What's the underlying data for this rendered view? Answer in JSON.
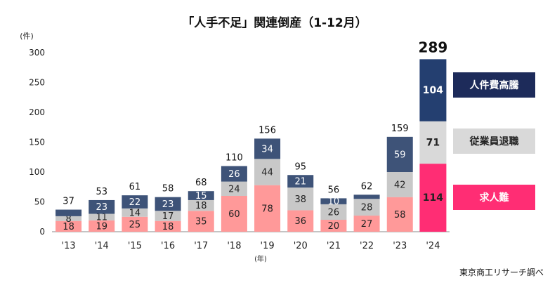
{
  "chart_data": {
    "type": "bar",
    "stacked": true,
    "title": "「人手不足」関連倒産（1-12月）",
    "ylabel": "(件)",
    "xlabel": "(年)",
    "source": "東京商工リサーチ調べ",
    "ylim": [
      0,
      300
    ],
    "yticks": [
      0,
      50,
      100,
      150,
      200,
      250,
      300
    ],
    "categories": [
      "'13",
      "'14",
      "'15",
      "'16",
      "'17",
      "'18",
      "'19",
      "'20",
      "'21",
      "'22",
      "'23",
      "'24"
    ],
    "totals": [
      37,
      53,
      61,
      58,
      68,
      110,
      156,
      95,
      56,
      62,
      159,
      289
    ],
    "series": [
      {
        "name": "求人難",
        "values": [
          18,
          19,
          25,
          18,
          35,
          60,
          78,
          36,
          20,
          27,
          58,
          114
        ]
      },
      {
        "name": "従業員退職",
        "values": [
          8,
          11,
          14,
          17,
          18,
          24,
          44,
          38,
          26,
          28,
          42,
          71
        ]
      },
      {
        "name": "人件費高騰",
        "values": [
          11,
          23,
          22,
          23,
          15,
          26,
          34,
          21,
          10,
          7,
          59,
          104
        ]
      }
    ],
    "data_labels": {
      "求人難": [
        "18",
        "19",
        "25",
        "18",
        "35",
        "60",
        "78",
        "36",
        "20",
        "27",
        "58",
        "114"
      ],
      "従業員退職": [
        "8",
        "11",
        "14",
        "17",
        "18",
        "24",
        "44",
        "38",
        "26",
        "28",
        "42",
        "71"
      ],
      "人件費高騰": [
        "",
        "23",
        "22",
        "23",
        "15",
        "26",
        "34",
        "21",
        "10",
        "",
        "59",
        "104"
      ]
    },
    "colors": {
      "求人難": "#ff9999",
      "求人難_highlight": "#ff2d74",
      "従業員退職": "#c8c8c8",
      "従業員退職_highlight": "#d9d9d9",
      "人件費高騰": "#3e5378",
      "人件費高騰_highlight": "#243f70",
      "legend_人件費高騰": "#1d2b5a",
      "legend_従業員退職": "#d9d9d9",
      "legend_求人難": "#ff2d74"
    },
    "legend": "right",
    "legend_order": [
      "人件費高騰",
      "従業員退職",
      "求人難"
    ],
    "highlight_category": "'24",
    "grid": false
  }
}
